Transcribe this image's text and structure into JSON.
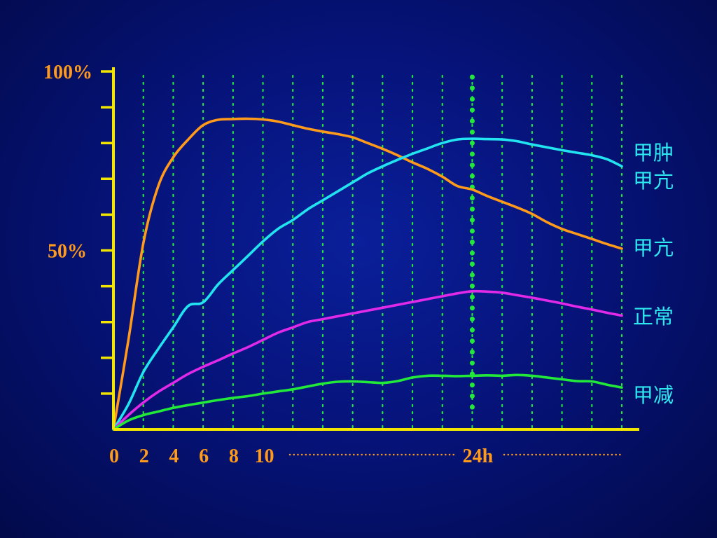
{
  "chart_data": {
    "type": "line",
    "x_tick_labels": [
      "0",
      "2",
      "4",
      "6",
      "8",
      "10",
      "24h"
    ],
    "y_tick_labels": [
      "100%",
      "50%"
    ],
    "ylim": [
      0,
      100
    ],
    "y_minor_ticks": 10,
    "grid": "vertical dotted",
    "marker_x": 24,
    "series": [
      {
        "name": "甲亢",
        "color": "#ff9a1a",
        "x": [
          0,
          1,
          2,
          3,
          4,
          5,
          6,
          7,
          8,
          9,
          10,
          11,
          12,
          13,
          14,
          15,
          16,
          17,
          18,
          19,
          20,
          21,
          22,
          23,
          24,
          25,
          26,
          27,
          28,
          29,
          30,
          31,
          32,
          33,
          34
        ],
        "y": [
          0,
          25,
          52,
          68,
          76,
          81,
          85,
          86.5,
          86.7,
          86.8,
          86.6,
          86,
          85,
          84,
          83.2,
          82.5,
          81.6,
          80,
          78.4,
          76.6,
          74.6,
          72.8,
          70.6,
          68,
          67,
          65.2,
          63.6,
          62,
          60.2,
          57.9,
          56,
          54.6,
          53.2,
          51.8,
          50.5
        ]
      },
      {
        "name": "甲肿甲亢",
        "color": "#22e4f0",
        "x": [
          0,
          1,
          2,
          3,
          4,
          5,
          6,
          7,
          8,
          9,
          10,
          11,
          12,
          13,
          14,
          15,
          16,
          17,
          18,
          19,
          20,
          21,
          22,
          23,
          24,
          25,
          26,
          27,
          28,
          29,
          30,
          31,
          32,
          33,
          34
        ],
        "y": [
          0,
          7,
          16,
          22.5,
          28.5,
          34.5,
          35.5,
          40.5,
          44.5,
          48.5,
          52.5,
          56,
          58.5,
          61.5,
          64,
          66.5,
          69,
          71.5,
          73.5,
          75.3,
          77,
          78.5,
          80,
          81,
          81.2,
          81.1,
          81,
          80.5,
          79.6,
          78.8,
          78,
          77.3,
          76.6,
          75.5,
          73.5
        ]
      },
      {
        "name": "正常",
        "color": "#e02ae8",
        "x": [
          0,
          1,
          2,
          3,
          4,
          5,
          6,
          7,
          8,
          9,
          10,
          11,
          12,
          13,
          14,
          15,
          16,
          17,
          18,
          19,
          20,
          21,
          22,
          23,
          24,
          25,
          26,
          27,
          28,
          29,
          30,
          31,
          32,
          33,
          34
        ],
        "y": [
          0,
          4,
          7.5,
          10.5,
          13,
          15.5,
          17.5,
          19.3,
          21.2,
          23,
          25,
          27,
          28.5,
          30,
          30.8,
          31.6,
          32.4,
          33.2,
          34,
          34.8,
          35.6,
          36.4,
          37.2,
          38,
          38.6,
          38.5,
          38.2,
          37.5,
          36.8,
          36,
          35.2,
          34.3,
          33.5,
          32.6,
          31.8
        ]
      },
      {
        "name": "甲减",
        "color": "#22e83a",
        "x": [
          0,
          1,
          2,
          3,
          4,
          5,
          6,
          7,
          8,
          9,
          10,
          11,
          12,
          13,
          14,
          15,
          16,
          17,
          18,
          19,
          20,
          21,
          22,
          23,
          24,
          25,
          26,
          27,
          28,
          29,
          30,
          31,
          32,
          33,
          34
        ],
        "y": [
          0,
          2.5,
          4,
          5,
          6,
          6.8,
          7.5,
          8.2,
          8.8,
          9.3,
          10,
          10.6,
          11.2,
          12,
          12.8,
          13.3,
          13.4,
          13.2,
          13,
          13.5,
          14.5,
          15,
          15,
          14.9,
          15,
          15.1,
          15,
          15.2,
          15,
          14.5,
          14,
          13.5,
          13.4,
          12.5,
          11.7
        ]
      }
    ],
    "series_labels": [
      {
        "key": "goiter_hyper_line1",
        "text": "甲肿"
      },
      {
        "key": "goiter_hyper_line2",
        "text": "甲亢"
      },
      {
        "key": "hyper",
        "text": "甲亢"
      },
      {
        "key": "normal",
        "text": "正常"
      },
      {
        "key": "hypo",
        "text": "甲减"
      }
    ],
    "axis_color": "#f2e600",
    "grid_color": "#22e83a",
    "label_color": "#ff9a1a",
    "series_label_color": "#2ee8f0"
  }
}
